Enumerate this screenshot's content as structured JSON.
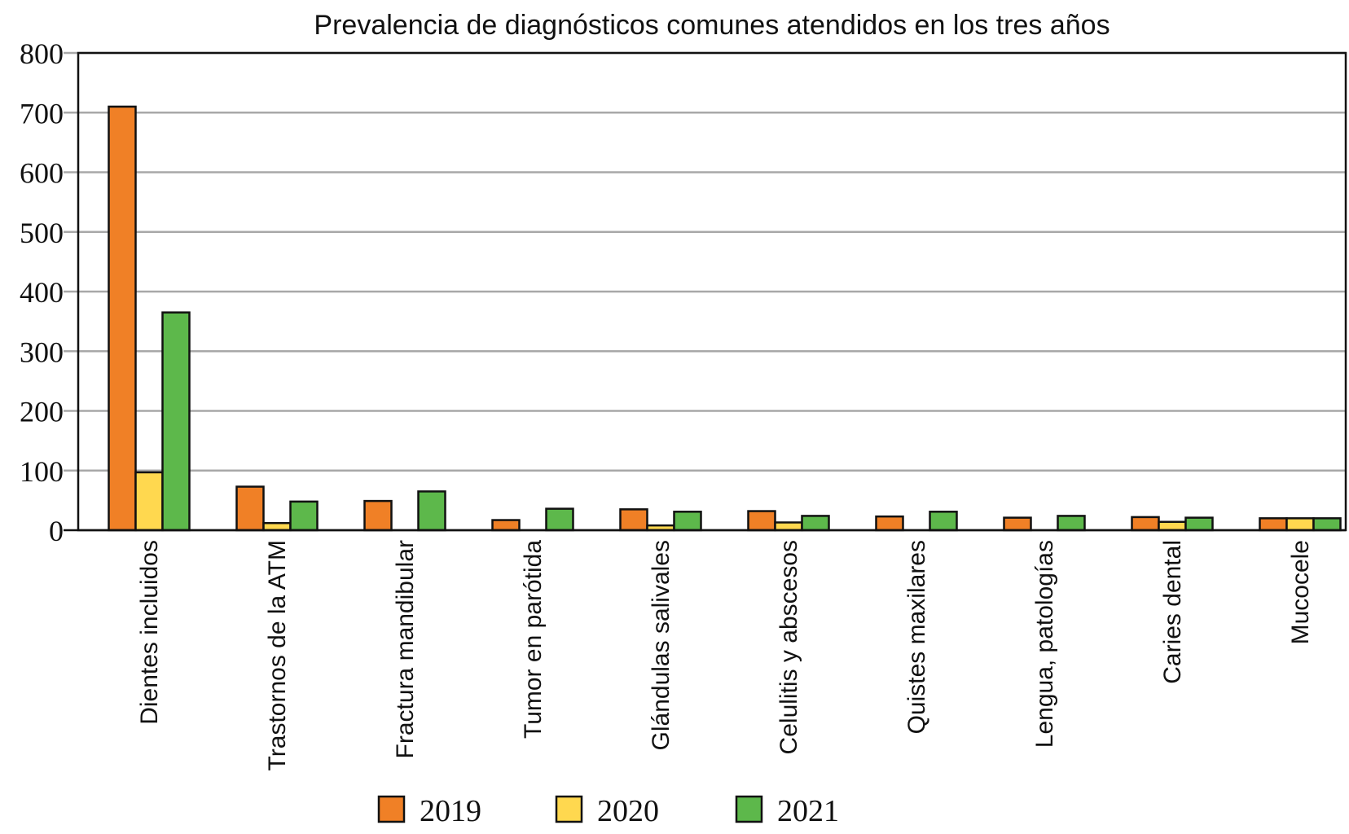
{
  "chart_data": {
    "type": "bar",
    "title": "Prevalencia de diagnósticos comunes atendidos en los tres años",
    "xlabel": "",
    "ylabel": "",
    "ylim": [
      0,
      800
    ],
    "yticks": [
      0,
      100,
      200,
      300,
      400,
      500,
      600,
      700,
      800
    ],
    "grid": true,
    "legend_position": "bottom-center",
    "categories": [
      "Dientes incluidos",
      "Trastornos de la ATM",
      "Fractura mandibular",
      "Tumor en parótida",
      "Glándulas salivales",
      "Celulitis y abscesos",
      "Quistes maxilares",
      "Lengua, patologías",
      "Caries dental",
      "Mucocele"
    ],
    "series": [
      {
        "name": "2019",
        "color": "#F08026",
        "values": [
          710,
          73,
          49,
          17,
          35,
          32,
          23,
          21,
          22,
          20
        ]
      },
      {
        "name": "2020",
        "color": "#FFD84F",
        "values": [
          97,
          12,
          0,
          0,
          8,
          13,
          0,
          0,
          14,
          20
        ]
      },
      {
        "name": "2021",
        "color": "#5DB84B",
        "values": [
          365,
          48,
          65,
          36,
          31,
          24,
          31,
          24,
          21,
          20
        ]
      }
    ]
  }
}
